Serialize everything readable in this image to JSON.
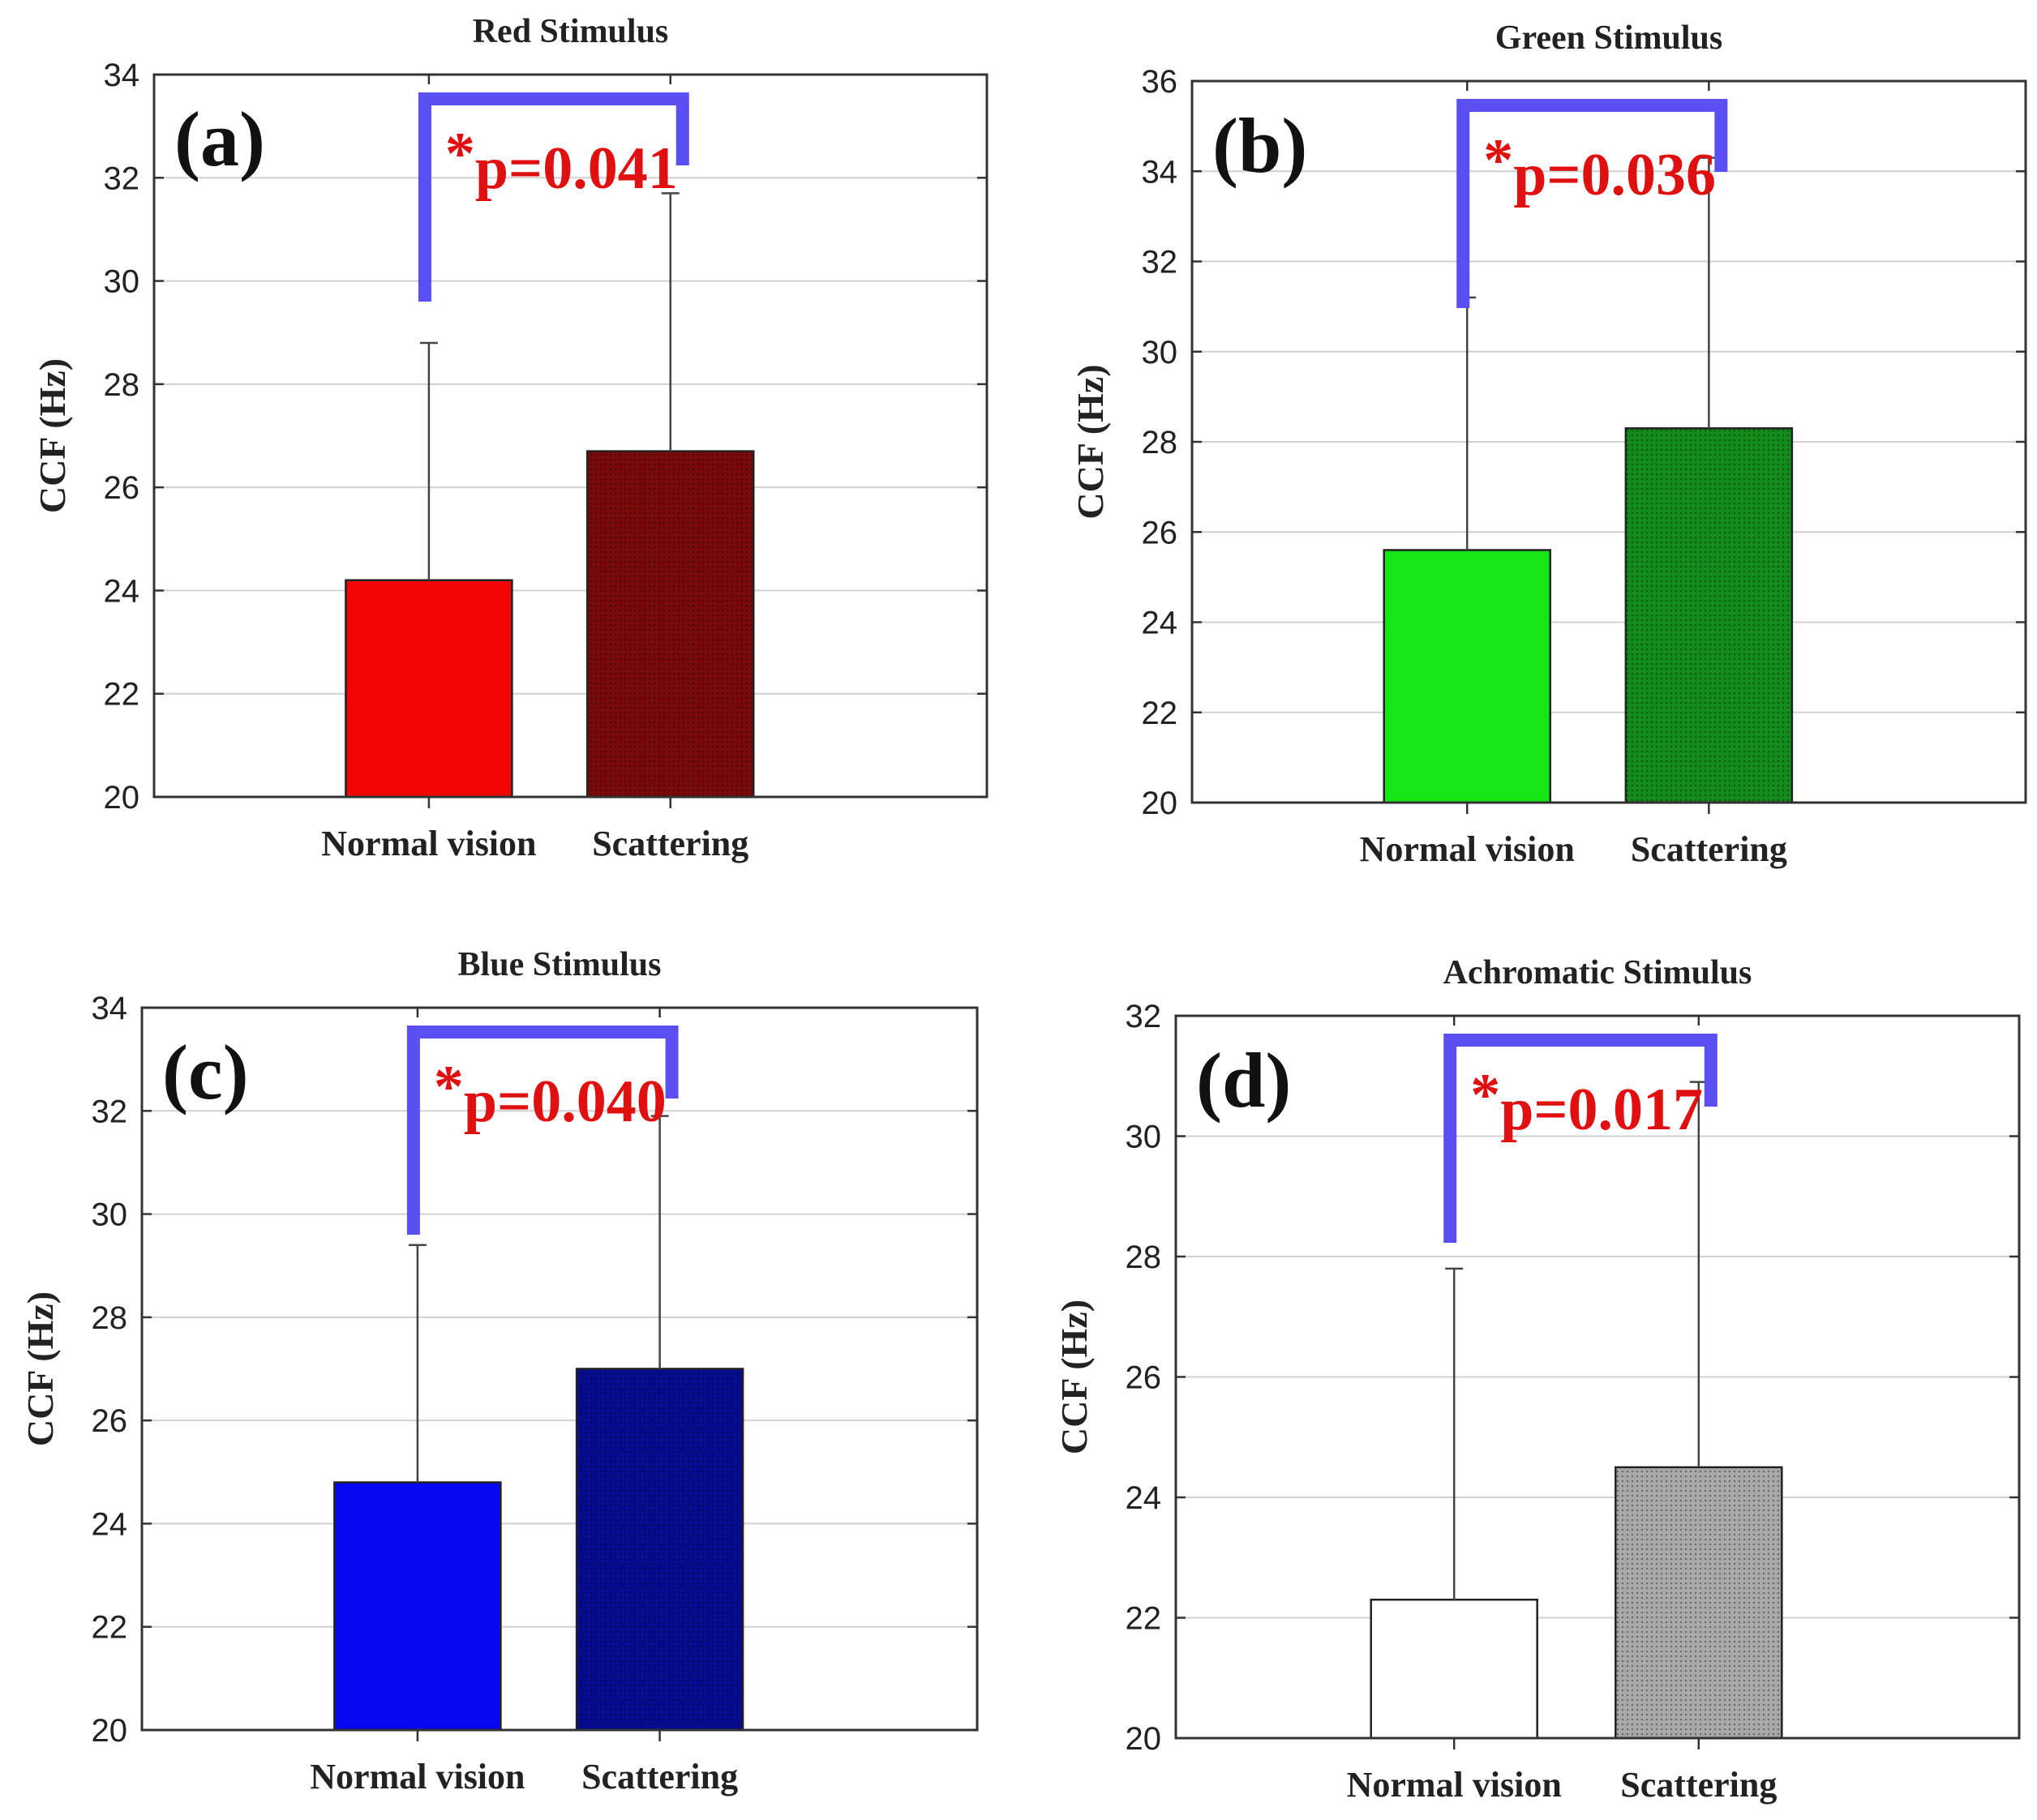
{
  "chart_data": [
    {
      "type": "bar",
      "panel_label": "(a)",
      "title": "Red Stimulus",
      "ylabel": "CCF (Hz)",
      "ylim": [
        20,
        34
      ],
      "yticks": [
        "20",
        "22",
        "24",
        "26",
        "28",
        "30",
        "32",
        "34"
      ],
      "categories": [
        "Normal vision",
        "Scattering"
      ],
      "values": [
        24.2,
        26.7
      ],
      "error": [
        4.6,
        5.0
      ],
      "bar_colors": [
        "#f10404",
        "#7a0a0a"
      ],
      "bar_patterns": [
        "solid",
        "dotted"
      ],
      "significance": {
        "star": "*",
        "text": "p=0.041"
      },
      "grid": true
    },
    {
      "type": "bar",
      "panel_label": "(b)",
      "title": "Green Stimulus",
      "ylabel": "CCF (Hz)",
      "ylim": [
        20,
        36
      ],
      "yticks": [
        "20",
        "22",
        "24",
        "26",
        "28",
        "30",
        "32",
        "34",
        "36"
      ],
      "categories": [
        "Normal vision",
        "Scattering"
      ],
      "values": [
        25.6,
        28.3
      ],
      "error": [
        5.6,
        6.0
      ],
      "bar_colors": [
        "#16e516",
        "#148c1c"
      ],
      "bar_patterns": [
        "solid",
        "dotted"
      ],
      "significance": {
        "star": "*",
        "text": "p=0.036"
      },
      "grid": true
    },
    {
      "type": "bar",
      "panel_label": "(c)",
      "title": "Blue Stimulus",
      "ylabel": "CCF (Hz)",
      "ylim": [
        20,
        34
      ],
      "yticks": [
        "20",
        "22",
        "24",
        "26",
        "28",
        "30",
        "32",
        "34"
      ],
      "categories": [
        "Normal vision",
        "Scattering"
      ],
      "values": [
        24.8,
        27.0
      ],
      "error": [
        4.6,
        4.9
      ],
      "bar_colors": [
        "#0606f0",
        "#050c90"
      ],
      "bar_patterns": [
        "solid",
        "dotted"
      ],
      "significance": {
        "star": "*",
        "text": "p=0.040"
      },
      "grid": true
    },
    {
      "type": "bar",
      "panel_label": "(d)",
      "title": "Achromatic Stimulus",
      "ylabel": "CCF (Hz)",
      "ylim": [
        20,
        32
      ],
      "yticks": [
        "20",
        "22",
        "24",
        "26",
        "28",
        "30",
        "32"
      ],
      "categories": [
        "Normal vision",
        "Scattering"
      ],
      "values": [
        22.3,
        24.5
      ],
      "error": [
        5.5,
        6.4
      ],
      "bar_colors": [
        "#ffffff",
        "#a9a9a9"
      ],
      "bar_patterns": [
        "solid",
        "dotted"
      ],
      "significance": {
        "star": "*",
        "text": "p=0.017"
      },
      "grid": true
    }
  ],
  "colors": {
    "bracket": "#5a4ff0",
    "significance_text": "#e01010",
    "axis": "#333333",
    "grid": "#d0d0d0"
  }
}
